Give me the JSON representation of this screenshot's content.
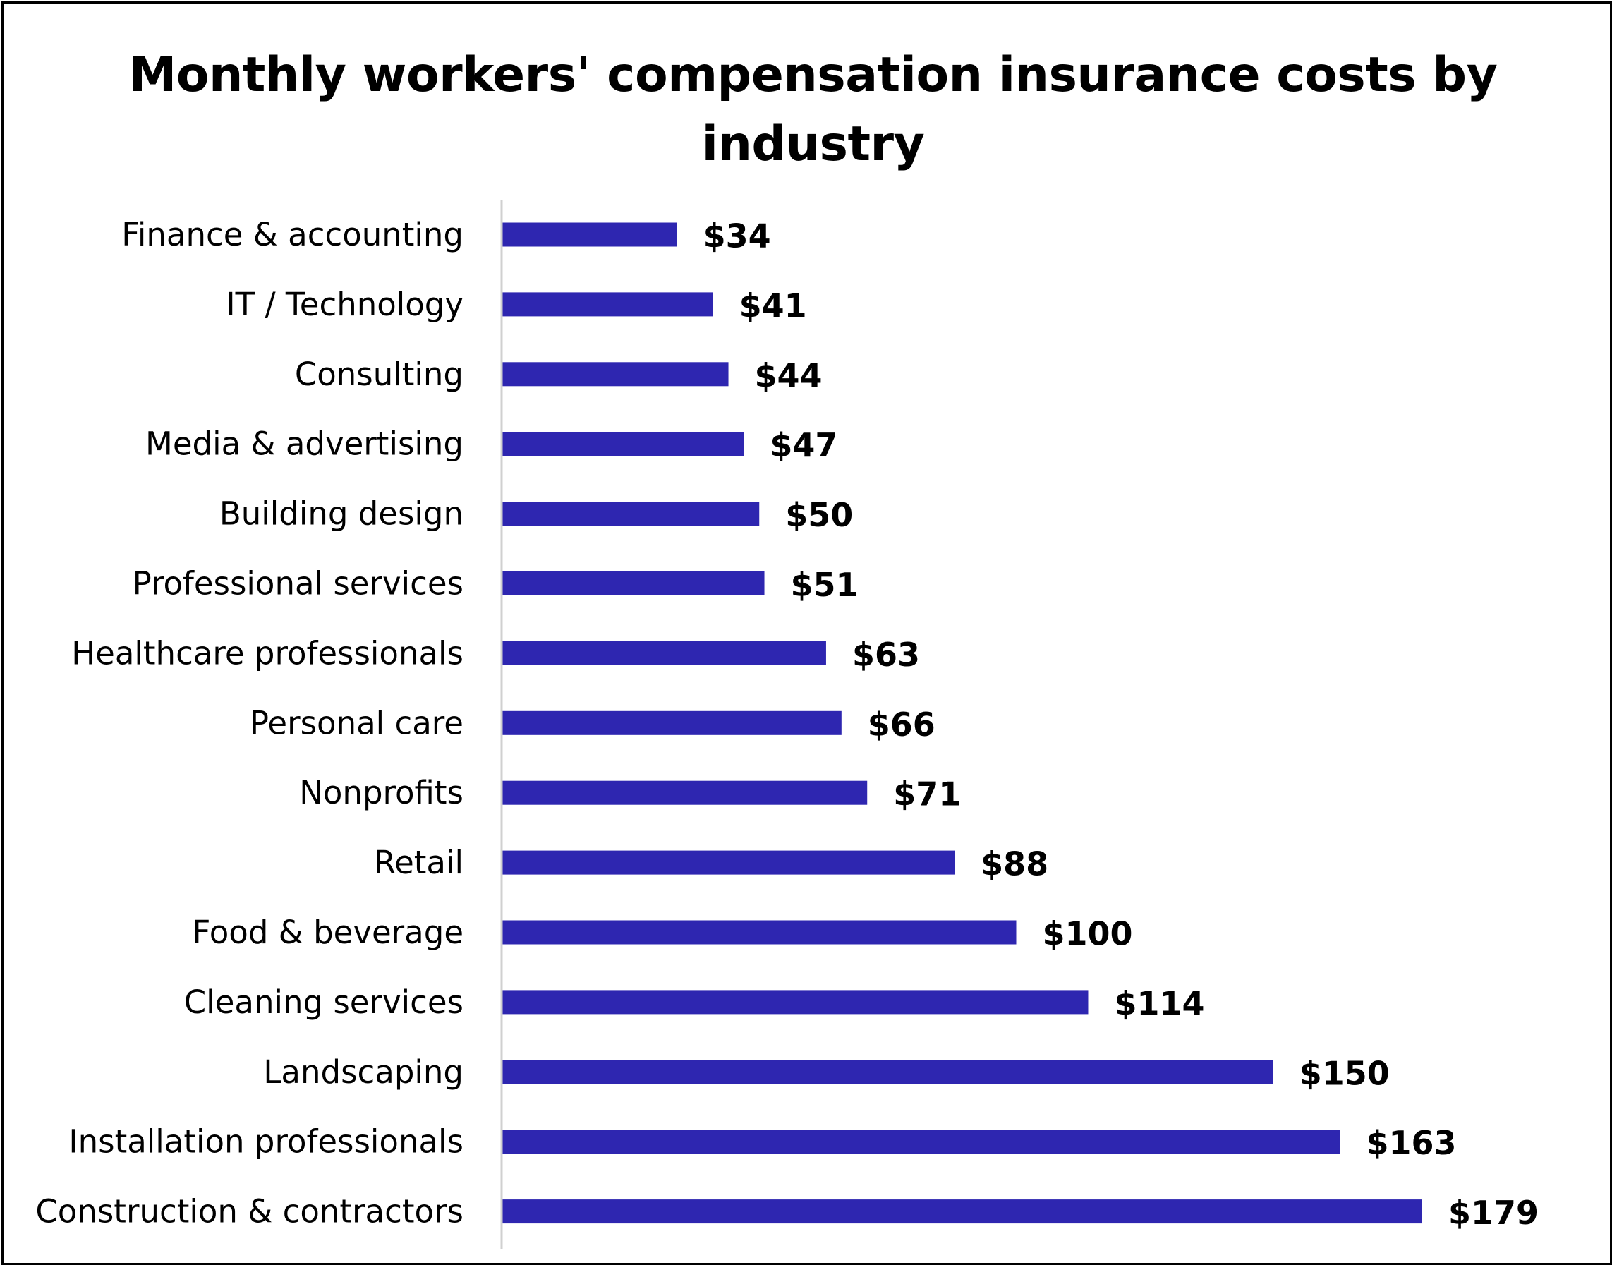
{
  "chart_data": {
    "type": "bar",
    "orientation": "horizontal",
    "title_lines": [
      "Monthly workers' compensation insurance costs by",
      "industry"
    ],
    "categories": [
      "Finance & accounting",
      "IT / Technology",
      "Consulting",
      "Media & advertising",
      "Building design",
      "Professional services",
      "Healthcare professionals",
      "Personal care",
      "Nonprofits",
      "Retail",
      "Food & beverage",
      "Cleaning services",
      "Landscaping",
      "Installation professionals",
      "Construction & contractors"
    ],
    "values": [
      34,
      41,
      44,
      47,
      50,
      51,
      63,
      66,
      71,
      88,
      100,
      114,
      150,
      163,
      179
    ],
    "value_labels": [
      "$34",
      "$41",
      "$44",
      "$47",
      "$50",
      "$51",
      "$63",
      "$66",
      "$71",
      "$88",
      "$100",
      "$114",
      "$150",
      "$163",
      "$179"
    ],
    "xlim": [
      0,
      179
    ],
    "grid": false,
    "legend": "none",
    "bar_color": "#2E26B0",
    "axis_color": "#D0D0D0"
  }
}
